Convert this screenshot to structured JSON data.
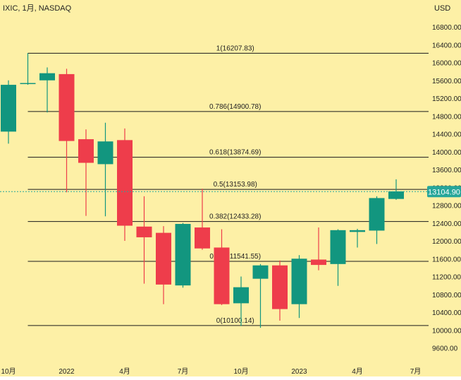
{
  "header": {
    "symbol_label": "IXIC, 1月, NASDAQ",
    "currency": "USD"
  },
  "colors": {
    "background": "#fdf0a6",
    "up": "#12967f",
    "down": "#ee3d4b",
    "fib_line": "#1a1a1a",
    "text": "#222222",
    "last_price": "#26a69a"
  },
  "chart_data": {
    "type": "candlestick",
    "title": "IXIC, 1月, NASDAQ",
    "ylabel": "USD",
    "ylim": [
      9400,
      17000
    ],
    "y_ticks": [
      9600,
      10000,
      10400,
      10800,
      11200,
      11600,
      12000,
      12400,
      12800,
      13200,
      13600,
      14000,
      14400,
      14800,
      15200,
      15600,
      16000,
      16400,
      16800
    ],
    "x_ticks": [
      {
        "label": "10月",
        "index": 0
      },
      {
        "label": "2022",
        "index": 3
      },
      {
        "label": "4月",
        "index": 6
      },
      {
        "label": "7月",
        "index": 9
      },
      {
        "label": "10月",
        "index": 12
      },
      {
        "label": "2023",
        "index": 15
      },
      {
        "label": "4月",
        "index": 18
      },
      {
        "label": "7月",
        "index": 21
      }
    ],
    "candles": [
      {
        "open": 14450,
        "high": 15600,
        "low": 14180,
        "close": 15500
      },
      {
        "open": 15520,
        "high": 16210,
        "low": 15500,
        "close": 15540
      },
      {
        "open": 15600,
        "high": 15890,
        "low": 14880,
        "close": 15760
      },
      {
        "open": 15740,
        "high": 15860,
        "low": 13090,
        "close": 14240
      },
      {
        "open": 14280,
        "high": 14500,
        "low": 12560,
        "close": 13750
      },
      {
        "open": 13720,
        "high": 14650,
        "low": 12550,
        "close": 14230
      },
      {
        "open": 14260,
        "high": 14520,
        "low": 12000,
        "close": 12340
      },
      {
        "open": 12320,
        "high": 13000,
        "low": 11040,
        "close": 12080
      },
      {
        "open": 12180,
        "high": 12330,
        "low": 10580,
        "close": 11020
      },
      {
        "open": 11000,
        "high": 12400,
        "low": 10950,
        "close": 12380
      },
      {
        "open": 12300,
        "high": 13170,
        "low": 11800,
        "close": 11830
      },
      {
        "open": 11850,
        "high": 12260,
        "low": 10560,
        "close": 10580
      },
      {
        "open": 10600,
        "high": 11200,
        "low": 10090,
        "close": 10960
      },
      {
        "open": 11150,
        "high": 11480,
        "low": 10050,
        "close": 11450
      },
      {
        "open": 11450,
        "high": 11560,
        "low": 10210,
        "close": 10470
      },
      {
        "open": 10580,
        "high": 11680,
        "low": 10270,
        "close": 11600
      },
      {
        "open": 11580,
        "high": 12300,
        "low": 11340,
        "close": 11460
      },
      {
        "open": 11480,
        "high": 12260,
        "low": 10990,
        "close": 12240
      },
      {
        "open": 12200,
        "high": 12270,
        "low": 11850,
        "close": 12240
      },
      {
        "open": 12230,
        "high": 13000,
        "low": 11930,
        "close": 12960
      },
      {
        "open": 12940,
        "high": 13380,
        "low": 12920,
        "close": 13110
      }
    ],
    "fib_levels": [
      {
        "label": "1(16207.83)",
        "value": 16207.83
      },
      {
        "label": "0.786(14900.78)",
        "value": 14900.78
      },
      {
        "label": "0.618(13874.69)",
        "value": 13874.69
      },
      {
        "label": "0.5(13153.98)",
        "value": 13153.98
      },
      {
        "label": "0.382(12433.28)",
        "value": 12433.28
      },
      {
        "label": "0.236(11541.55)",
        "value": 11541.55
      },
      {
        "label": "0(10100.14)",
        "value": 10100.14
      }
    ],
    "fib_start_index": 1,
    "last_price": 13104.9,
    "last_price_label": "13104.90"
  }
}
